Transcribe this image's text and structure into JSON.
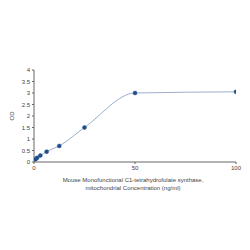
{
  "chart_data": {
    "type": "line",
    "x_label": "Mouse Monofunctional C1-tetrahydrofolate synthase, mitochondrial Concentration (ng/ml)",
    "y_label": "OD",
    "x": [
      0.78,
      1.56,
      3.125,
      6.25,
      12.5,
      25,
      50,
      100
    ],
    "values": [
      0.12,
      0.18,
      0.28,
      0.45,
      0.7,
      1.5,
      3.0,
      3.05
    ],
    "xlim": [
      0,
      100
    ],
    "xticks": [
      0,
      50,
      100
    ],
    "ylim": [
      0,
      4
    ],
    "yticks": [
      0,
      0.5,
      1,
      1.5,
      2,
      2.5,
      3,
      3.5,
      4
    ],
    "color": "#1f4e8c",
    "marker": "circle",
    "grid": false
  }
}
